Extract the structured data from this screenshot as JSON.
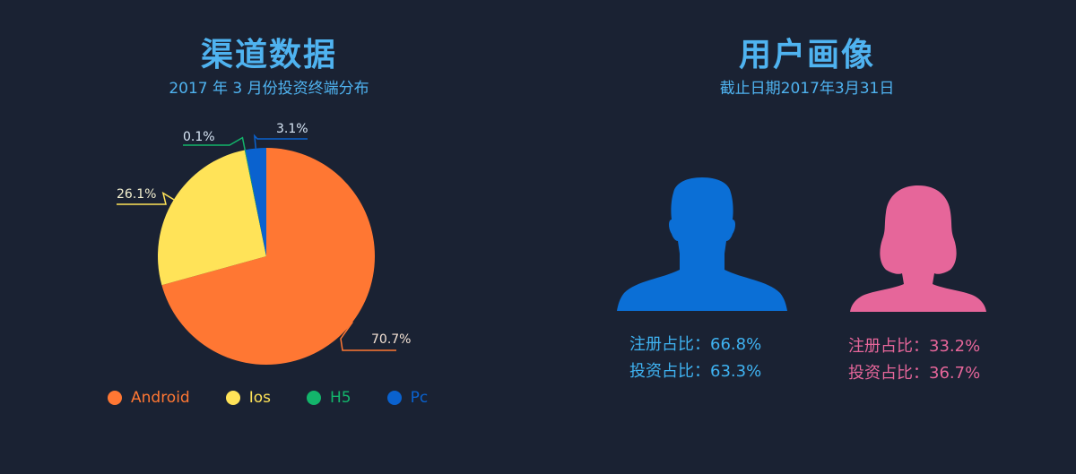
{
  "left": {
    "title": "渠道数据",
    "subtitle": "2017 年 3 月份投资终端分布"
  },
  "right": {
    "title": "用户画像",
    "subtitle": "截止日期2017年3月31日",
    "male": {
      "register": "注册占比：66.8%",
      "invest": "投资占比：63.3%",
      "icon": "male-user-icon"
    },
    "female": {
      "register": "注册占比：33.2%",
      "invest": "投资占比：36.7%",
      "icon": "female-user-icon"
    }
  },
  "colors": {
    "title": "#4fb3f0",
    "subtitle": "#4fb3f0",
    "male": "#0b6fd6",
    "male_text": "#3fb3f2",
    "female": "#e6669a",
    "female_text": "#e6669a"
  },
  "chart_data": {
    "type": "pie",
    "title": "渠道数据",
    "subtitle": "2017 年 3 月份投资终端分布",
    "legend_position": "bottom",
    "slices": [
      {
        "name": "Android",
        "value": 70.7,
        "label": "70.7%",
        "color": "#ff7733"
      },
      {
        "name": "Ios",
        "value": 26.1,
        "label": "26.1%",
        "color": "#ffe358"
      },
      {
        "name": "H5",
        "value": 0.1,
        "label": "0.1%",
        "color": "#13b56b"
      },
      {
        "name": "Pc",
        "value": 3.1,
        "label": "3.1%",
        "color": "#0a62cf"
      }
    ]
  }
}
